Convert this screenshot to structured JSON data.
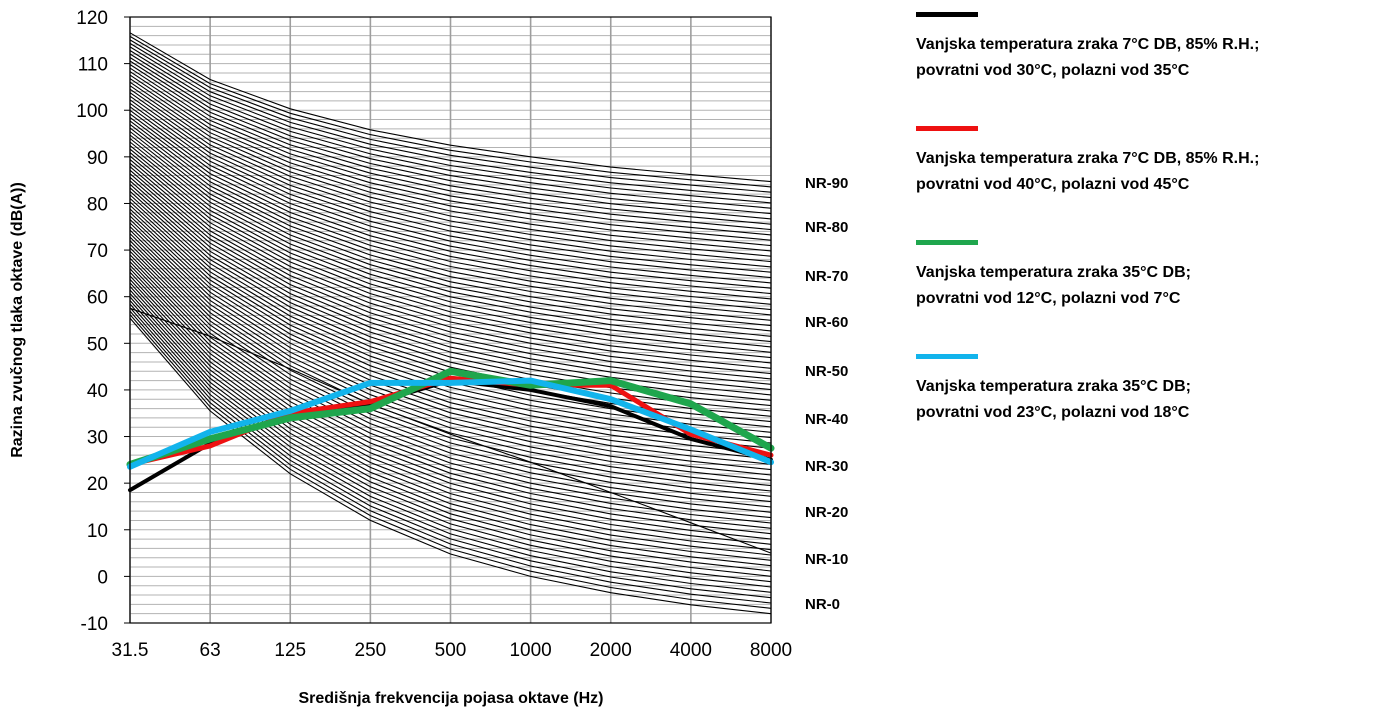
{
  "chart_data": {
    "type": "line",
    "ylabel": "Razina zvučnog tlaka oktave (dB(A))",
    "xlabel": "Središnja frekvencija pojasa oktave (Hz)",
    "ylim": [
      -10,
      120
    ],
    "yticks": [
      "-10",
      "0",
      "10",
      "20",
      "30",
      "40",
      "50",
      "60",
      "70",
      "80",
      "90",
      "100",
      "110",
      "120"
    ],
    "categories": [
      "31.5",
      "63",
      "125",
      "250",
      "500",
      "1000",
      "2000",
      "4000",
      "8000"
    ],
    "grid": "horizontal every 2 dB, vertical at each octave band",
    "nr_curves": [
      {
        "name": "NR-0",
        "values": [
          55.4,
          35.5,
          22.0,
          12.0,
          4.8,
          0.0,
          -3.5,
          -6.1,
          -8.0
        ]
      },
      {
        "name": "NR-10",
        "values": [
          62.2,
          43.4,
          30.7,
          21.3,
          14.5,
          10.0,
          6.6,
          4.2,
          2.3
        ]
      },
      {
        "name": "NR-20",
        "values": [
          69.0,
          51.3,
          39.4,
          30.7,
          24.3,
          20.0,
          16.8,
          14.4,
          12.6
        ]
      },
      {
        "name": "NR-30",
        "values": [
          75.8,
          59.2,
          48.1,
          40.0,
          34.0,
          30.0,
          26.9,
          24.7,
          22.9
        ]
      },
      {
        "name": "NR-40",
        "values": [
          82.6,
          67.1,
          56.8,
          49.3,
          43.8,
          40.0,
          37.1,
          34.9,
          33.2
        ]
      },
      {
        "name": "NR-50",
        "values": [
          89.4,
          75.0,
          65.5,
          58.6,
          53.5,
          50.0,
          47.2,
          45.2,
          43.5
        ]
      },
      {
        "name": "NR-60",
        "values": [
          96.2,
          82.9,
          74.2,
          67.9,
          63.2,
          60.0,
          57.4,
          55.5,
          53.8
        ]
      },
      {
        "name": "NR-70",
        "values": [
          103.0,
          90.8,
          82.9,
          77.2,
          73.0,
          70.0,
          67.5,
          65.7,
          64.1
        ]
      },
      {
        "name": "NR-80",
        "values": [
          109.8,
          98.7,
          91.6,
          86.5,
          82.7,
          80.0,
          77.7,
          76.0,
          74.4
        ]
      },
      {
        "name": "NR-90",
        "values": [
          116.6,
          106.6,
          100.3,
          95.8,
          92.5,
          90.0,
          87.8,
          86.2,
          84.7
        ]
      }
    ],
    "nr_labels": [
      "NR-0",
      "NR-10",
      "NR-20",
      "NR-30",
      "NR-40",
      "NR-50",
      "NR-60",
      "NR-70",
      "NR-80",
      "NR-90"
    ],
    "nr_intermediate_curve_count": 9,
    "extra_curve": {
      "values": [
        57.5,
        51.5,
        44.5,
        37.0,
        30.5,
        24.5,
        18.0,
        11.5,
        5.0
      ]
    },
    "series": [
      {
        "name": "Vanjska temperatura zraka 7°C DB, 85% R.H.; povratni vod 30°C, polazni vod 35°C",
        "color": "#000000",
        "values": [
          18.5,
          28.5,
          34.5,
          37.0,
          42.0,
          40.0,
          36.5,
          29.5,
          25.0
        ]
      },
      {
        "name": "Vanjska temperatura zraka 7°C DB, 85% R.H.; povratni vod 40°C, polazni vod 45°C",
        "color": "#ee1111",
        "values": [
          24.0,
          28.0,
          35.0,
          37.5,
          42.5,
          41.0,
          41.0,
          30.5,
          26.0
        ]
      },
      {
        "name": "Vanjska temperatura zraka 35°C DB; povratni vod 12°C, polazni vod 7°C",
        "color": "#1fa64d",
        "values": [
          24.0,
          29.5,
          34.0,
          36.0,
          44.0,
          41.0,
          42.0,
          37.0,
          27.5
        ]
      },
      {
        "name": "Vanjska temperatura zraka 35°C DB; povratni vod 23°C, polazni vod 18°C",
        "color": "#12b4ec",
        "values": [
          23.5,
          31.0,
          35.5,
          41.5,
          41.5,
          42.0,
          38.0,
          31.5,
          24.5
        ]
      }
    ],
    "legend": {
      "position": "right",
      "items": [
        {
          "line1": "Vanjska temperatura zraka 7°C DB, 85% R.H.;",
          "line2": "povratni vod 30°C, polazni vod 35°C",
          "color": "#000000"
        },
        {
          "line1": "Vanjska temperatura zraka 7°C DB, 85% R.H.;",
          "line2": "povratni vod 40°C, polazni vod 45°C",
          "color": "#ee1111"
        },
        {
          "line1": "Vanjska temperatura zraka 35°C DB;",
          "line2": "povratni vod 12°C, polazni vod 7°C",
          "color": "#1fa64d"
        },
        {
          "line1": "Vanjska temperatura zraka 35°C DB;",
          "line2": "povratni vod 23°C, polazni vod 18°C",
          "color": "#12b4ec"
        }
      ]
    }
  }
}
